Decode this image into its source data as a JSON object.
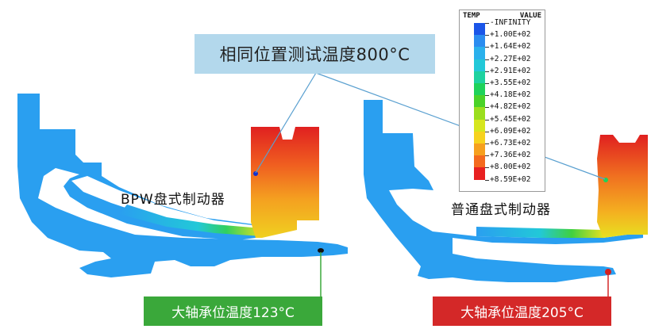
{
  "callout_top": "相同位置测试温度800°C",
  "label_left": "BPW盘式制动器",
  "label_right": "普通盘式制动器",
  "tag_left": "大轴承位温度123°C",
  "tag_right": "大轴承位温度205°C",
  "legend": {
    "title_left": "TEMP",
    "title_right": "VALUE",
    "entries": [
      {
        "label": "-INFINITY",
        "color": "#0a1ec8"
      },
      {
        "label": "+1.00E+02",
        "color": "#1a55e8"
      },
      {
        "label": "+1.64E+02",
        "color": "#2a8cf0"
      },
      {
        "label": "+2.27E+02",
        "color": "#2ab0ec"
      },
      {
        "label": "+2.91E+02",
        "color": "#22c8d8"
      },
      {
        "label": "+3.55E+02",
        "color": "#1ed2a0"
      },
      {
        "label": "+4.18E+02",
        "color": "#1ed25a"
      },
      {
        "label": "+4.82E+02",
        "color": "#4ad228"
      },
      {
        "label": "+5.45E+02",
        "color": "#9ade1e"
      },
      {
        "label": "+6.09E+02",
        "color": "#d6e61e"
      },
      {
        "label": "+6.73E+02",
        "color": "#f6d21e"
      },
      {
        "label": "+7.36E+02",
        "color": "#f6a01e"
      },
      {
        "label": "+8.00E+02",
        "color": "#f46a1e"
      },
      {
        "label": "+8.59E+02",
        "color": "#e82020"
      }
    ]
  },
  "colors": {
    "part_blue": "#2a9ff0",
    "hot_red": "#e02020",
    "callout_bg": "#b3d8ec",
    "tag_green": "#3aa83a",
    "tag_red": "#d42828"
  }
}
